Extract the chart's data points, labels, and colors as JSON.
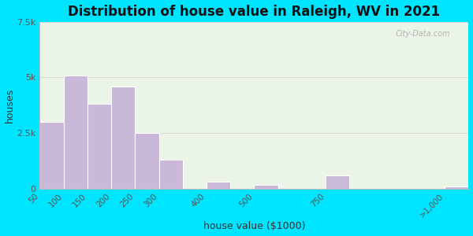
{
  "title": "Distribution of house value in Raleigh, WV in 2021",
  "xlabel": "house value ($1000)",
  "ylabel": "houses",
  "bar_labels": [
    "50",
    "100",
    "150",
    "200",
    "250",
    "300",
    "400",
    "500",
    "750",
    ">1,000"
  ],
  "bar_values": [
    3000,
    5100,
    3800,
    4600,
    2500,
    1300,
    300,
    150,
    600,
    100
  ],
  "bar_positions": [
    0,
    1,
    2,
    3,
    4,
    5,
    7,
    9,
    12,
    17
  ],
  "bar_width": 1.0,
  "bar_color": "#c9b8d8",
  "bar_edgecolor": "#ffffff",
  "ylim": [
    0,
    7500
  ],
  "yticks": [
    0,
    2500,
    5000,
    7500
  ],
  "ytick_labels": [
    "0",
    "2.5k",
    "5k",
    "7.5k"
  ],
  "background_outer": "#00e5ff",
  "background_inner": "#eaf5e8",
  "title_fontsize": 12,
  "axis_label_fontsize": 9,
  "watermark_text": "City-Data.com"
}
